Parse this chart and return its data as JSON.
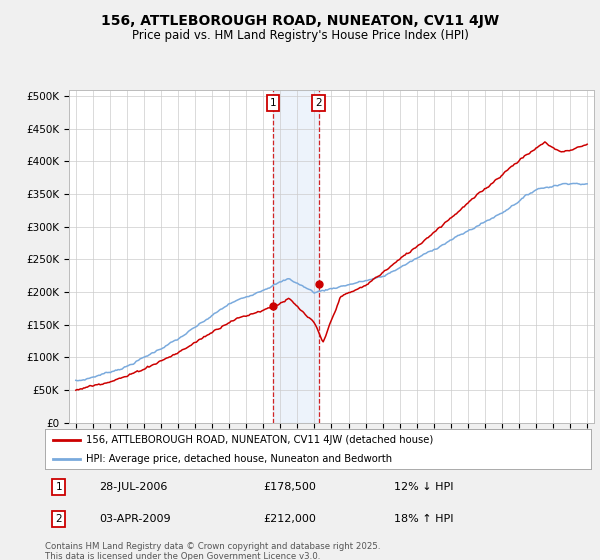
{
  "title": "156, ATTLEBOROUGH ROAD, NUNEATON, CV11 4JW",
  "subtitle": "Price paid vs. HM Land Registry's House Price Index (HPI)",
  "legend_label_red": "156, ATTLEBOROUGH ROAD, NUNEATON, CV11 4JW (detached house)",
  "legend_label_blue": "HPI: Average price, detached house, Nuneaton and Bedworth",
  "annotation1_date": "28-JUL-2006",
  "annotation1_price": "£178,500",
  "annotation1_hpi": "12% ↓ HPI",
  "annotation2_date": "03-APR-2009",
  "annotation2_price": "£212,000",
  "annotation2_hpi": "18% ↑ HPI",
  "footer": "Contains HM Land Registry data © Crown copyright and database right 2025.\nThis data is licensed under the Open Government Licence v3.0.",
  "ylim": [
    0,
    510000
  ],
  "yticks": [
    0,
    50000,
    100000,
    150000,
    200000,
    250000,
    300000,
    350000,
    400000,
    450000,
    500000
  ],
  "ytick_labels": [
    "£0",
    "£50K",
    "£100K",
    "£150K",
    "£200K",
    "£250K",
    "£300K",
    "£350K",
    "£400K",
    "£450K",
    "£500K"
  ],
  "bg_color": "#f0f0f0",
  "plot_bg_color": "#ffffff",
  "red_color": "#cc0000",
  "blue_color": "#7aaadd",
  "shade_color": "#ccddf5",
  "annotation_box_color": "#cc0000",
  "vline_color": "#cc0000",
  "sale1_year": 2006.57,
  "sale2_year": 2009.25,
  "sale1_price": 178500,
  "sale2_price": 212000,
  "xmin": 1995,
  "xmax": 2025
}
